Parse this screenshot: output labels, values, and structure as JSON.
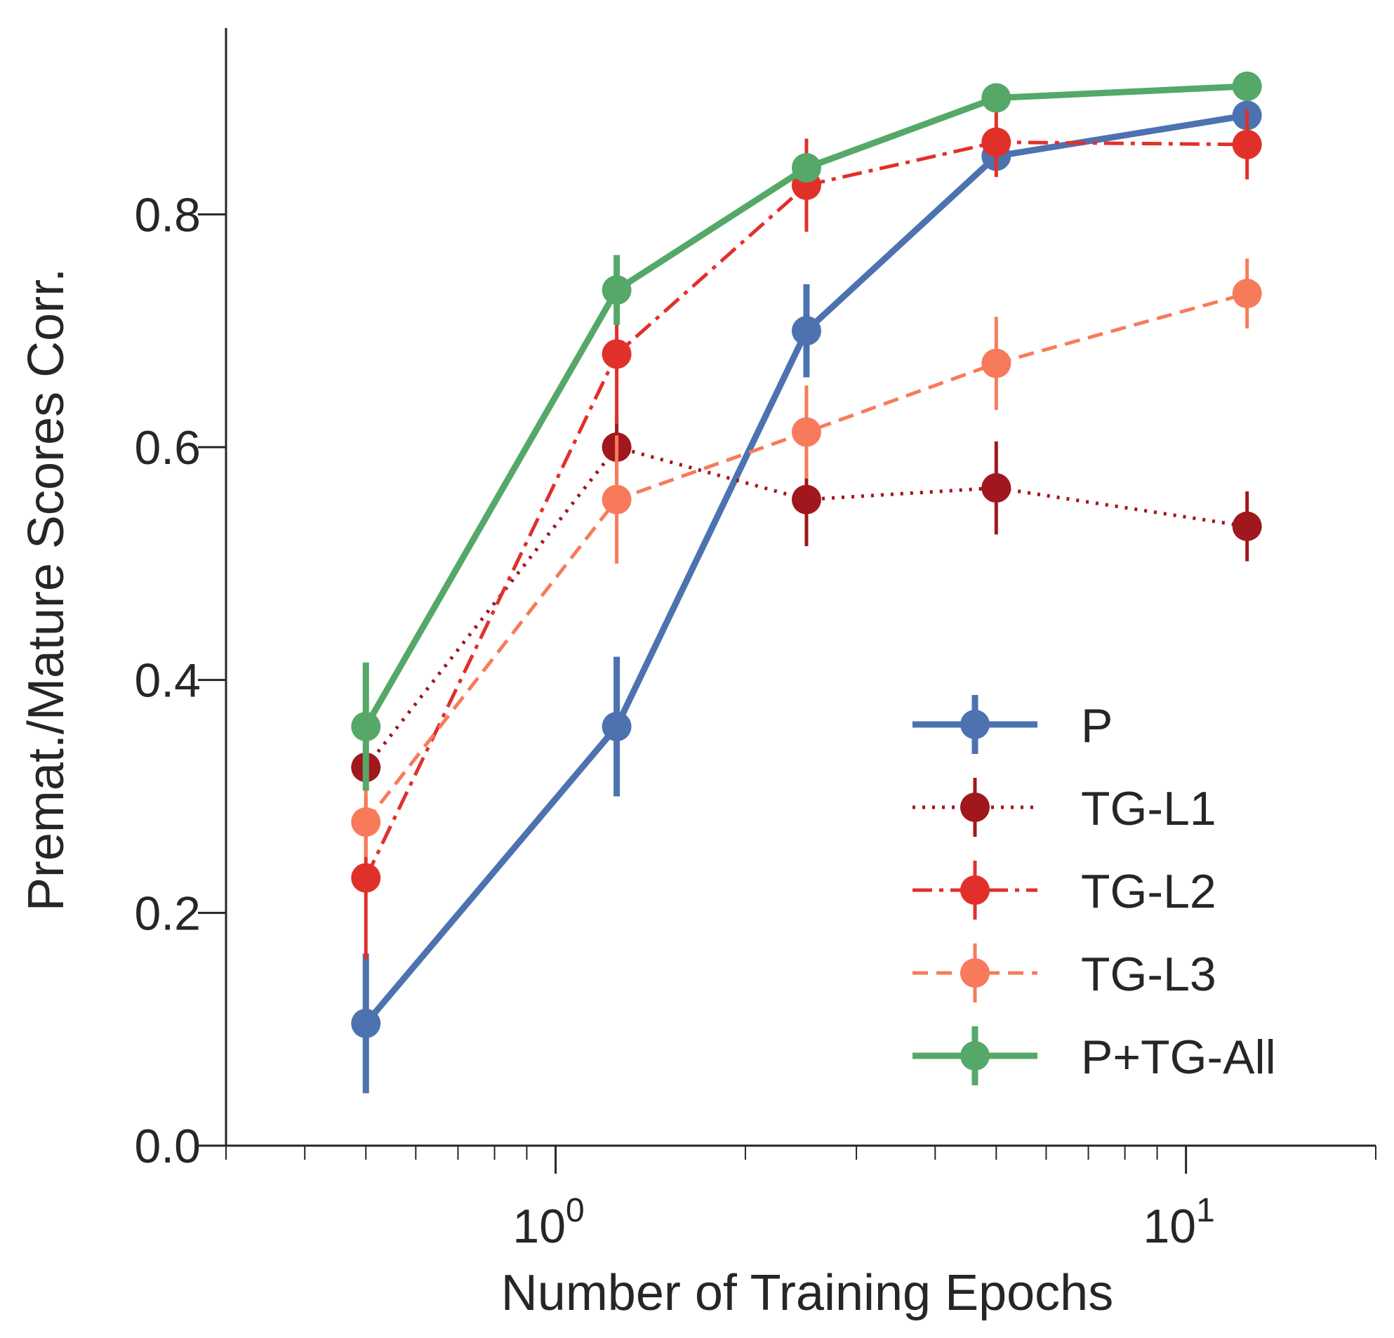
{
  "chart_data": {
    "type": "line",
    "title": "",
    "xlabel": "Number of Training Epochs",
    "ylabel": "Premat./Mature Scores Corr.",
    "xscale": "log",
    "xlim": [
      0.3,
      20
    ],
    "ylim": [
      0.0,
      0.96
    ],
    "x_ticks": [
      {
        "value": 1,
        "base": "10",
        "exp": "0"
      },
      {
        "value": 10,
        "base": "10",
        "exp": "1"
      }
    ],
    "y_ticks": [
      0.0,
      0.2,
      0.4,
      0.6,
      0.8
    ],
    "y_tick_labels": [
      "0.0",
      "0.2",
      "0.4",
      "0.6",
      "0.8"
    ],
    "x": [
      0.5,
      1.25,
      2.5,
      5.0,
      12.5
    ],
    "series": [
      {
        "name": "P",
        "color": "#4c72b0",
        "dash": "solid",
        "width": "thick",
        "values": [
          0.105,
          0.36,
          0.7,
          0.85,
          0.885
        ],
        "errors": [
          0.06,
          0.06,
          0.04,
          0.0,
          0.0
        ]
      },
      {
        "name": "TG-L1",
        "color": "#a0171d",
        "dash": "dotted",
        "width": "thin",
        "values": [
          0.325,
          0.6,
          0.555,
          0.565,
          0.532
        ],
        "errors": [
          0.02,
          0.025,
          0.04,
          0.04,
          0.03
        ]
      },
      {
        "name": "TG-L2",
        "color": "#e1302a",
        "dash": "dashdot",
        "width": "thin",
        "values": [
          0.23,
          0.68,
          0.825,
          0.862,
          0.86
        ],
        "errors": [
          0.07,
          0.06,
          0.04,
          0.03,
          0.03
        ]
      },
      {
        "name": "TG-L3",
        "color": "#f77b5a",
        "dash": "dashed",
        "width": "thin",
        "values": [
          0.278,
          0.555,
          0.613,
          0.672,
          0.732
        ],
        "errors": [
          0.03,
          0.055,
          0.04,
          0.04,
          0.03
        ]
      },
      {
        "name": "P+TG-All",
        "color": "#55a868",
        "dash": "solid",
        "width": "thick",
        "values": [
          0.36,
          0.735,
          0.84,
          0.9,
          0.91
        ],
        "errors": [
          0.055,
          0.03,
          0.0,
          0.0,
          0.0
        ]
      }
    ],
    "legend_position": "lower-right"
  }
}
